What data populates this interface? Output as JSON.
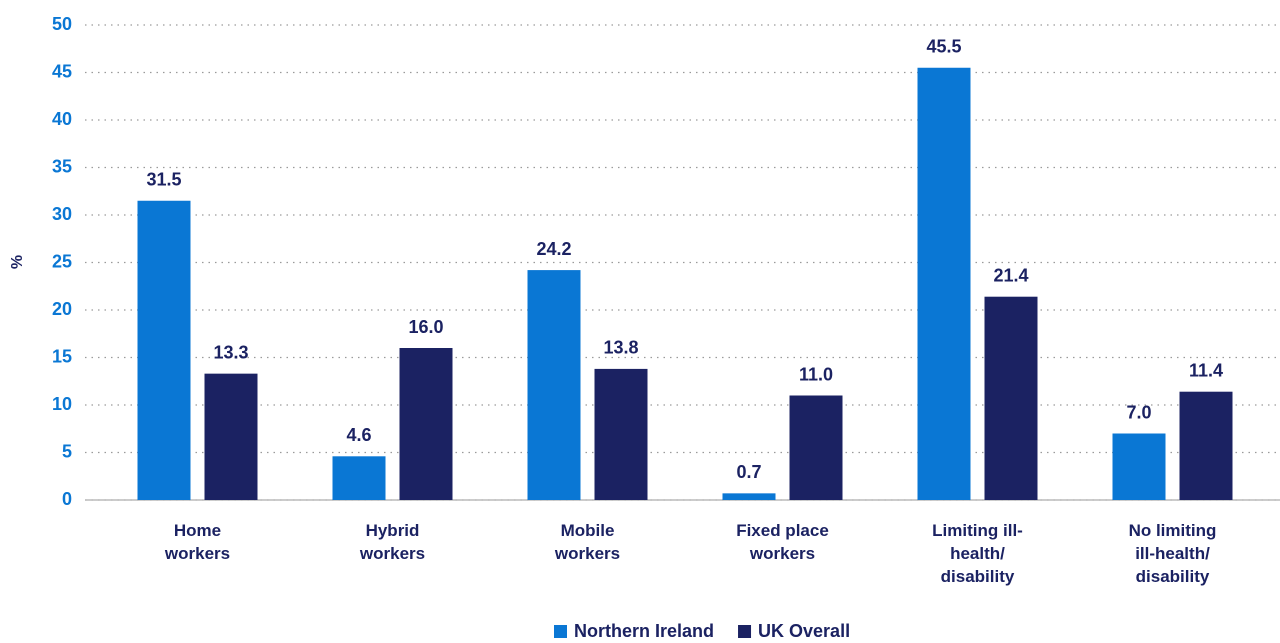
{
  "chart_data": {
    "type": "bar",
    "y_label": "%",
    "categories": [
      "Home workers",
      "Hybrid workers",
      "Mobile workers",
      "Fixed place workers",
      "Limiting ill-health/ disability",
      "No limiting ill-health/ disability"
    ],
    "series": [
      {
        "name": "Northern Ireland",
        "color": "#0a77d4",
        "values": [
          31.5,
          4.6,
          24.2,
          0.7,
          45.5,
          7.0
        ],
        "value_labels": [
          "31.5",
          "4.6",
          "24.2",
          "0.7",
          "45.5",
          "7.0"
        ]
      },
      {
        "name": "UK Overall",
        "color": "#1b2262",
        "values": [
          13.3,
          16.0,
          13.8,
          11.0,
          21.4,
          11.4
        ],
        "value_labels": [
          "13.3",
          "16.0",
          "13.8",
          "11.0",
          "21.4",
          "11.4"
        ]
      }
    ],
    "ylim": [
      0,
      50
    ],
    "yticks": [
      0,
      5,
      10,
      15,
      20,
      25,
      30,
      35,
      40,
      45,
      50
    ],
    "grid": true,
    "legend": "bottom"
  }
}
